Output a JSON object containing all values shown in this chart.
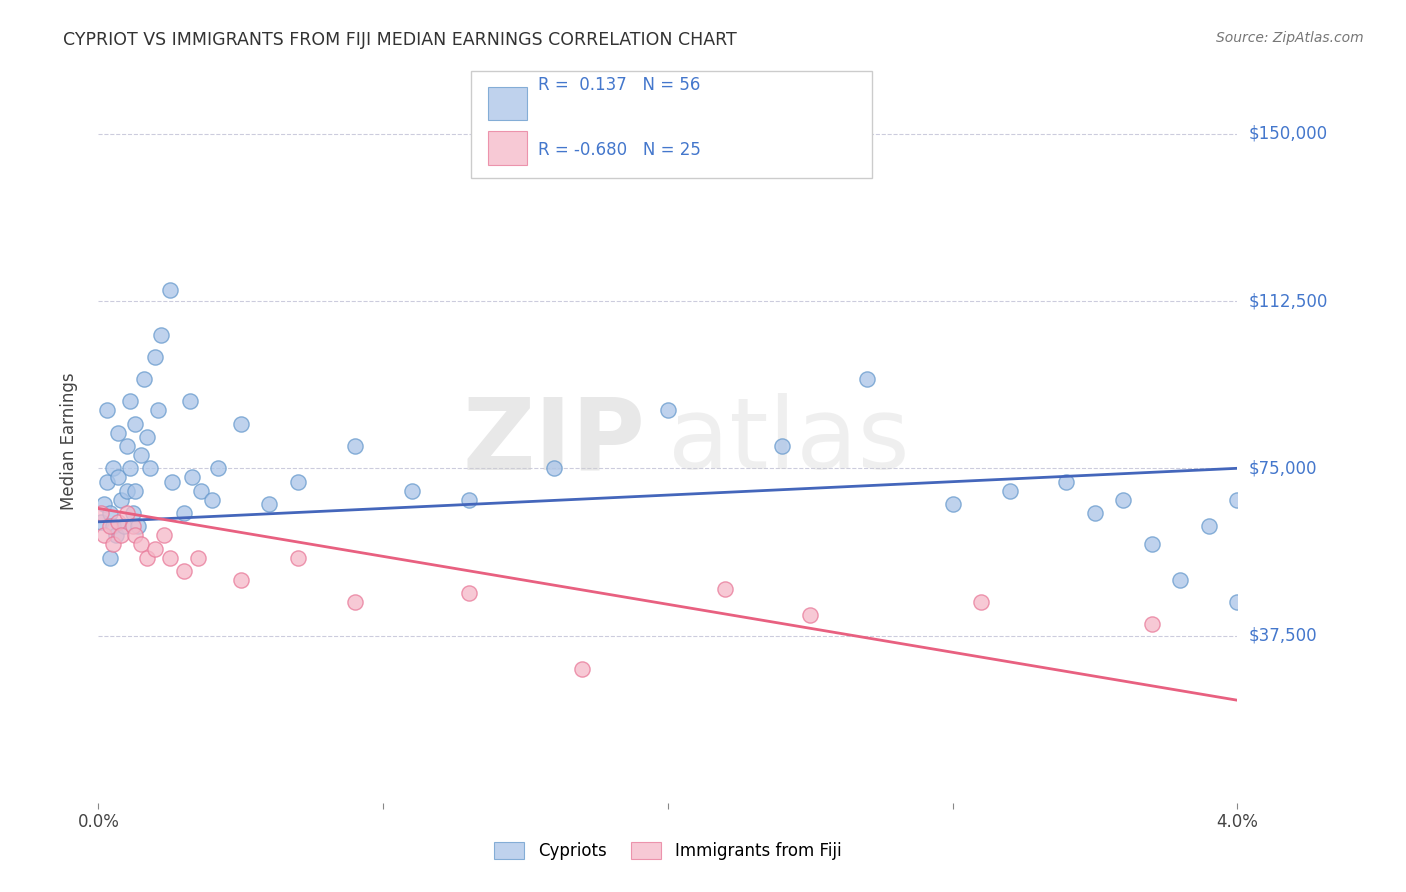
{
  "title": "CYPRIOT VS IMMIGRANTS FROM FIJI MEDIAN EARNINGS CORRELATION CHART",
  "source": "Source: ZipAtlas.com",
  "ylabel": "Median Earnings",
  "xlim": [
    0.0,
    0.04
  ],
  "ylim": [
    0,
    162000
  ],
  "yticks": [
    37500,
    75000,
    112500,
    150000
  ],
  "ytick_labels": [
    "$37,500",
    "$75,000",
    "$112,500",
    "$150,000"
  ],
  "xticks": [
    0.0,
    0.01,
    0.02,
    0.03,
    0.04
  ],
  "xtick_labels": [
    "0.0%",
    "",
    "",
    "",
    "4.0%"
  ],
  "background_color": "#ffffff",
  "blue_color": "#aac4e8",
  "blue_edge_color": "#6699cc",
  "pink_color": "#f5b8c8",
  "pink_edge_color": "#e87898",
  "blue_line_color": "#4466bb",
  "pink_line_color": "#e86080",
  "ytick_color": "#4477cc",
  "grid_color": "#ccccdd",
  "blue_scatter_x": [
    0.0001,
    0.0002,
    0.0003,
    0.0003,
    0.0004,
    0.0004,
    0.0005,
    0.0005,
    0.0006,
    0.0007,
    0.0007,
    0.0008,
    0.0009,
    0.001,
    0.001,
    0.0011,
    0.0011,
    0.0012,
    0.0013,
    0.0013,
    0.0014,
    0.0015,
    0.0016,
    0.0017,
    0.0018,
    0.002,
    0.0021,
    0.0022,
    0.0025,
    0.0026,
    0.003,
    0.0032,
    0.0033,
    0.0036,
    0.004,
    0.0042,
    0.005,
    0.006,
    0.007,
    0.009,
    0.011,
    0.013,
    0.016,
    0.02,
    0.024,
    0.027,
    0.03,
    0.032,
    0.034,
    0.035,
    0.036,
    0.037,
    0.038,
    0.039,
    0.04,
    0.04
  ],
  "blue_scatter_y": [
    63000,
    67000,
    88000,
    72000,
    65000,
    55000,
    62000,
    75000,
    60000,
    73000,
    83000,
    68000,
    62000,
    70000,
    80000,
    90000,
    75000,
    65000,
    70000,
    85000,
    62000,
    78000,
    95000,
    82000,
    75000,
    100000,
    88000,
    105000,
    115000,
    72000,
    65000,
    90000,
    73000,
    70000,
    68000,
    75000,
    85000,
    67000,
    72000,
    80000,
    70000,
    68000,
    75000,
    88000,
    80000,
    95000,
    67000,
    70000,
    72000,
    65000,
    68000,
    58000,
    50000,
    62000,
    45000,
    68000
  ],
  "pink_scatter_x": [
    0.0001,
    0.0002,
    0.0004,
    0.0005,
    0.0007,
    0.0008,
    0.001,
    0.0012,
    0.0013,
    0.0015,
    0.0017,
    0.002,
    0.0023,
    0.0025,
    0.003,
    0.0035,
    0.005,
    0.007,
    0.009,
    0.013,
    0.017,
    0.022,
    0.025,
    0.031,
    0.037
  ],
  "pink_scatter_y": [
    65000,
    60000,
    62000,
    58000,
    63000,
    60000,
    65000,
    62000,
    60000,
    58000,
    55000,
    57000,
    60000,
    55000,
    52000,
    55000,
    50000,
    55000,
    45000,
    47000,
    30000,
    48000,
    42000,
    45000,
    40000
  ],
  "blue_trend_x": [
    0.0,
    0.04
  ],
  "blue_trend_y": [
    63000,
    75000
  ],
  "pink_trend_x": [
    0.0,
    0.04
  ],
  "pink_trend_y": [
    66000,
    23000
  ],
  "legend_box_text1": "R =  0.137   N = 56",
  "legend_box_text2": "R = -0.680   N = 25",
  "bottom_legend1": "Cypriots",
  "bottom_legend2": "Immigrants from Fiji",
  "watermark_zip": "ZIP",
  "watermark_atlas": "atlas"
}
